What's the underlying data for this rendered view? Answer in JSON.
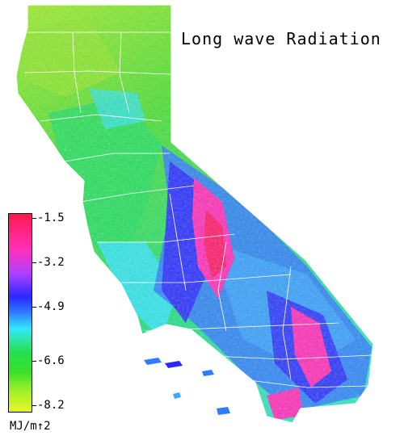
{
  "title": "Long wave Radiation",
  "legend": {
    "ticks": [
      "-1.5",
      "-3.2",
      "-4.9",
      "-6.6",
      "-8.2"
    ],
    "unit": "MJ/m↑2"
  },
  "colors": {
    "high": "#ff1a4f",
    "magenta": "#ff2fb8",
    "blue": "#2a28ff",
    "cyan": "#33e6ff",
    "green": "#22e050",
    "low": "#e6f52a"
  }
}
